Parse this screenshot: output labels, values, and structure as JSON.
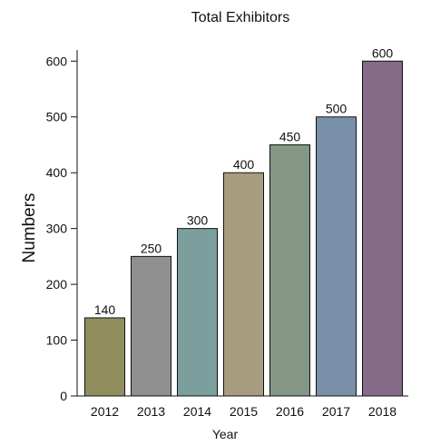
{
  "chart_data": {
    "type": "bar",
    "title": "Total Exhibitors",
    "xlabel": "Year",
    "ylabel": "Numbers",
    "categories": [
      "2012",
      "2013",
      "2014",
      "2015",
      "2016",
      "2017",
      "2018"
    ],
    "values": [
      140,
      250,
      300,
      400,
      450,
      500,
      600
    ],
    "data_labels": [
      "140",
      "250",
      "300",
      "400",
      "450",
      "500",
      "600"
    ],
    "yticks": [
      0,
      100,
      200,
      300,
      400,
      500,
      600
    ],
    "ylim": [
      0,
      620
    ],
    "grid": false,
    "legend": "none",
    "colors": [
      "#918e5e",
      "#8f8f8f",
      "#7c9f9e",
      "#a89c80",
      "#849786",
      "#7a90a8",
      "#856b88"
    ]
  }
}
